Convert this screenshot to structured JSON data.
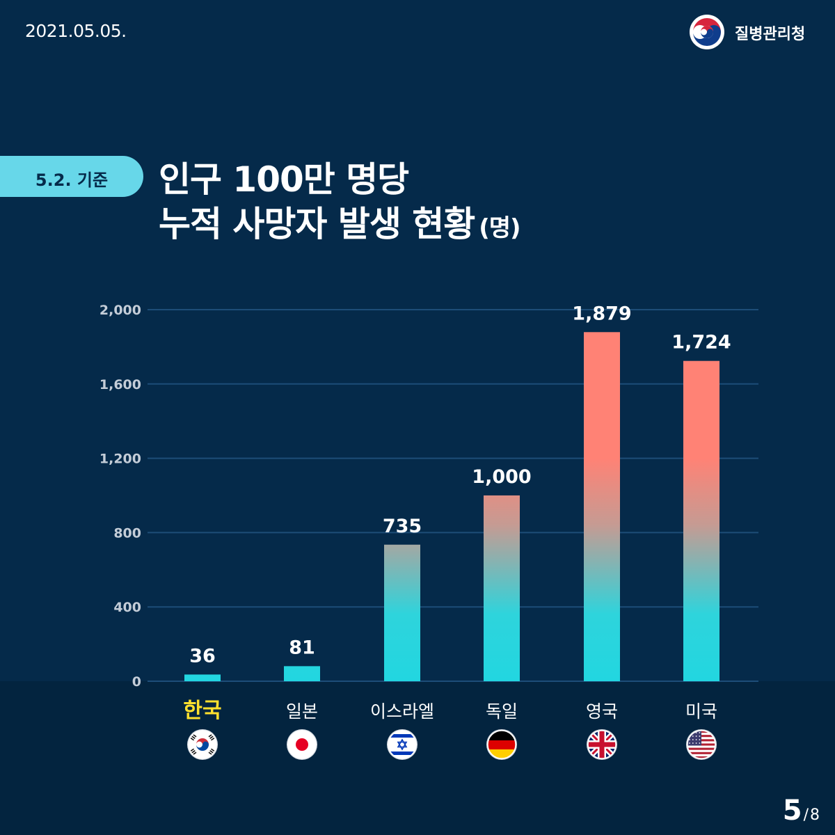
{
  "header": {
    "date": "2021.05.05.",
    "org_name": "질병관리청"
  },
  "badge": {
    "label": "5.2. 기준"
  },
  "title": {
    "line1": "인구 100만 명당",
    "line2": "누적 사망자 발생 현황",
    "unit": "(명)"
  },
  "pagination": {
    "current": "5",
    "separator": "/",
    "total": "8"
  },
  "colors": {
    "background": "#052a4a",
    "bottom_band": "#03243f",
    "badge": "#67d7e9",
    "bar_low": "#22d6e0",
    "bar_high": "#ff8275",
    "highlight_label": "#ffe02e",
    "grid": "#1d4d78",
    "tick_label": "#c4cdd8"
  },
  "chart_data": {
    "type": "bar",
    "categories": [
      "한국",
      "일본",
      "이스라엘",
      "독일",
      "영국",
      "미국"
    ],
    "values": [
      36,
      81,
      735,
      1000,
      1879,
      1724
    ],
    "value_labels": [
      "36",
      "81",
      "735",
      "1,000",
      "1,879",
      "1,724"
    ],
    "flags": [
      "korea-flag-icon",
      "japan-flag-icon",
      "israel-flag-icon",
      "germany-flag-icon",
      "uk-flag-icon",
      "usa-flag-icon"
    ],
    "highlight": "한국",
    "title": "인구 100만 명당 누적 사망자 발생 현황",
    "unit": "(명)",
    "ylim": [
      0,
      2000
    ],
    "yticks": [
      0,
      400,
      800,
      1200,
      1600,
      2000
    ],
    "ytick_labels": [
      "0",
      "400",
      "800",
      "1,200",
      "1,600",
      "2,000"
    ],
    "grid": true,
    "legend": "none"
  }
}
